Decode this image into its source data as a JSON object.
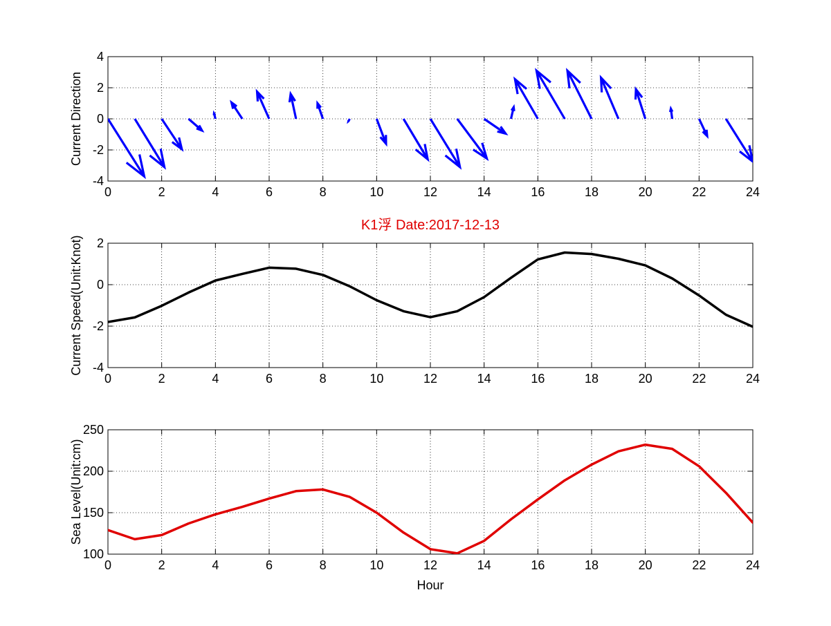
{
  "figure_title": "K1浮   Date:2017-12-13",
  "colors": {
    "title": "#e00000",
    "direction_arrows": "#0000ff",
    "speed_line": "#000000",
    "sea_level_line": "#e00000"
  },
  "chart_data": [
    {
      "type": "quiver",
      "ylabel": "Current Direction",
      "xlim": [
        0,
        24
      ],
      "ylim": [
        -4,
        4
      ],
      "xticks": [
        0,
        2,
        4,
        6,
        8,
        10,
        12,
        14,
        16,
        18,
        20,
        22,
        24
      ],
      "yticks": [
        -4,
        -2,
        0,
        2,
        4
      ],
      "grid": true,
      "base_y": 0,
      "x": [
        0,
        1,
        2,
        3,
        4,
        5,
        6,
        7,
        8,
        9,
        10,
        11,
        12,
        13,
        14,
        15,
        16,
        17,
        18,
        19,
        20,
        21,
        22,
        23,
        24
      ],
      "u": [
        1.35,
        1.1,
        0.75,
        0.5,
        -0.05,
        -0.4,
        -0.45,
        -0.2,
        -0.2,
        -0.05,
        0.35,
        0.9,
        1.1,
        1.1,
        0.8,
        0.1,
        -0.85,
        -1.05,
        -0.9,
        -0.65,
        -0.35,
        -0.05,
        0.3,
        1.0,
        0.0
      ],
      "v": [
        -3.7,
        -3.1,
        -1.95,
        -0.75,
        0.35,
        1.05,
        1.75,
        1.6,
        1.0,
        -0.15,
        -1.6,
        -2.6,
        -3.1,
        -2.55,
        -0.95,
        0.75,
        2.55,
        3.1,
        3.1,
        2.65,
        1.9,
        0.65,
        -1.1,
        -2.75,
        0.0
      ]
    },
    {
      "type": "line",
      "title": "K1浮   Date:2017-12-13",
      "ylabel": "Current Speed(Unit:Knot)",
      "xlim": [
        0,
        24
      ],
      "ylim": [
        -4,
        2
      ],
      "xticks": [
        0,
        2,
        4,
        6,
        8,
        10,
        12,
        14,
        16,
        18,
        20,
        22,
        24
      ],
      "yticks": [
        -4,
        -2,
        0,
        2
      ],
      "grid": true,
      "x": [
        0,
        1,
        2,
        3,
        4,
        5,
        6,
        7,
        8,
        9,
        10,
        11,
        12,
        13,
        14,
        15,
        16,
        17,
        18,
        19,
        20,
        21,
        22,
        23,
        24
      ],
      "y": [
        -1.8,
        -1.58,
        -1.02,
        -0.38,
        0.2,
        0.52,
        0.82,
        0.77,
        0.47,
        -0.08,
        -0.75,
        -1.28,
        -1.57,
        -1.28,
        -0.6,
        0.33,
        1.22,
        1.55,
        1.48,
        1.25,
        0.93,
        0.3,
        -0.52,
        -1.45,
        -2.03
      ]
    },
    {
      "type": "line",
      "ylabel": "Sea Level(Unit:cm)",
      "xlabel": "Hour",
      "xlim": [
        0,
        24
      ],
      "ylim": [
        100,
        250
      ],
      "xticks": [
        0,
        2,
        4,
        6,
        8,
        10,
        12,
        14,
        16,
        18,
        20,
        22,
        24
      ],
      "yticks": [
        100,
        150,
        200,
        250
      ],
      "grid": true,
      "x": [
        0,
        1,
        2,
        3,
        4,
        5,
        6,
        7,
        8,
        9,
        10,
        11,
        12,
        13,
        14,
        15,
        16,
        17,
        18,
        19,
        20,
        21,
        22,
        23,
        24
      ],
      "y": [
        129,
        118,
        123,
        137,
        148,
        157,
        167,
        176,
        178,
        169,
        150,
        126,
        106,
        101,
        116,
        142,
        166,
        189,
        208,
        224,
        232,
        227,
        206,
        174,
        138
      ]
    }
  ]
}
